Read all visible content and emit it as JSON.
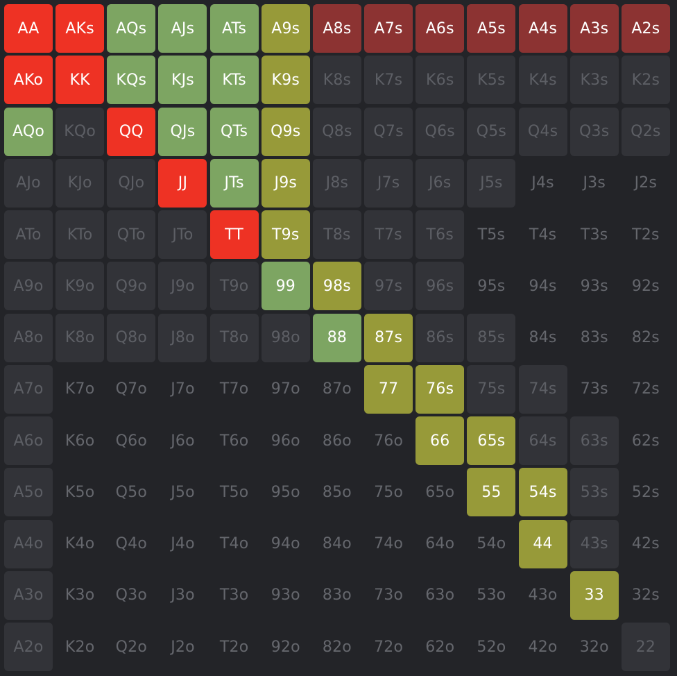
{
  "colors": {
    "raise": "#ee3224",
    "deep_red": "#8c3332",
    "green": "#7da562",
    "olive": "#979a39",
    "muted": "#323338",
    "none": "transparent"
  },
  "rows": [
    [
      {
        "label": "AA",
        "action": "raise"
      },
      {
        "label": "AKs",
        "action": "raise"
      },
      {
        "label": "AQs",
        "action": "green"
      },
      {
        "label": "AJs",
        "action": "green"
      },
      {
        "label": "ATs",
        "action": "green"
      },
      {
        "label": "A9s",
        "action": "olive"
      },
      {
        "label": "A8s",
        "action": "deep_red"
      },
      {
        "label": "A7s",
        "action": "deep_red"
      },
      {
        "label": "A6s",
        "action": "deep_red"
      },
      {
        "label": "A5s",
        "action": "deep_red"
      },
      {
        "label": "A4s",
        "action": "deep_red"
      },
      {
        "label": "A3s",
        "action": "deep_red"
      },
      {
        "label": "A2s",
        "action": "deep_red"
      }
    ],
    [
      {
        "label": "AKo",
        "action": "raise"
      },
      {
        "label": "KK",
        "action": "raise"
      },
      {
        "label": "KQs",
        "action": "green"
      },
      {
        "label": "KJs",
        "action": "green"
      },
      {
        "label": "KTs",
        "action": "green"
      },
      {
        "label": "K9s",
        "action": "olive"
      },
      {
        "label": "K8s",
        "action": "muted"
      },
      {
        "label": "K7s",
        "action": "muted"
      },
      {
        "label": "K6s",
        "action": "muted"
      },
      {
        "label": "K5s",
        "action": "muted"
      },
      {
        "label": "K4s",
        "action": "muted"
      },
      {
        "label": "K3s",
        "action": "muted"
      },
      {
        "label": "K2s",
        "action": "muted"
      }
    ],
    [
      {
        "label": "AQo",
        "action": "green"
      },
      {
        "label": "KQo",
        "action": "muted"
      },
      {
        "label": "QQ",
        "action": "raise"
      },
      {
        "label": "QJs",
        "action": "green"
      },
      {
        "label": "QTs",
        "action": "green"
      },
      {
        "label": "Q9s",
        "action": "olive"
      },
      {
        "label": "Q8s",
        "action": "muted"
      },
      {
        "label": "Q7s",
        "action": "muted"
      },
      {
        "label": "Q6s",
        "action": "muted"
      },
      {
        "label": "Q5s",
        "action": "muted"
      },
      {
        "label": "Q4s",
        "action": "muted"
      },
      {
        "label": "Q3s",
        "action": "muted"
      },
      {
        "label": "Q2s",
        "action": "muted"
      }
    ],
    [
      {
        "label": "AJo",
        "action": "muted"
      },
      {
        "label": "KJo",
        "action": "muted"
      },
      {
        "label": "QJo",
        "action": "muted"
      },
      {
        "label": "JJ",
        "action": "raise"
      },
      {
        "label": "JTs",
        "action": "green"
      },
      {
        "label": "J9s",
        "action": "olive"
      },
      {
        "label": "J8s",
        "action": "muted"
      },
      {
        "label": "J7s",
        "action": "muted"
      },
      {
        "label": "J6s",
        "action": "muted"
      },
      {
        "label": "J5s",
        "action": "muted"
      },
      {
        "label": "J4s",
        "action": "none"
      },
      {
        "label": "J3s",
        "action": "none"
      },
      {
        "label": "J2s",
        "action": "none"
      }
    ],
    [
      {
        "label": "ATo",
        "action": "muted"
      },
      {
        "label": "KTo",
        "action": "muted"
      },
      {
        "label": "QTo",
        "action": "muted"
      },
      {
        "label": "JTo",
        "action": "muted"
      },
      {
        "label": "TT",
        "action": "raise"
      },
      {
        "label": "T9s",
        "action": "olive"
      },
      {
        "label": "T8s",
        "action": "muted"
      },
      {
        "label": "T7s",
        "action": "muted"
      },
      {
        "label": "T6s",
        "action": "muted"
      },
      {
        "label": "T5s",
        "action": "none"
      },
      {
        "label": "T4s",
        "action": "none"
      },
      {
        "label": "T3s",
        "action": "none"
      },
      {
        "label": "T2s",
        "action": "none"
      }
    ],
    [
      {
        "label": "A9o",
        "action": "muted"
      },
      {
        "label": "K9o",
        "action": "muted"
      },
      {
        "label": "Q9o",
        "action": "muted"
      },
      {
        "label": "J9o",
        "action": "muted"
      },
      {
        "label": "T9o",
        "action": "muted"
      },
      {
        "label": "99",
        "action": "green"
      },
      {
        "label": "98s",
        "action": "olive"
      },
      {
        "label": "97s",
        "action": "muted"
      },
      {
        "label": "96s",
        "action": "muted"
      },
      {
        "label": "95s",
        "action": "none"
      },
      {
        "label": "94s",
        "action": "none"
      },
      {
        "label": "93s",
        "action": "none"
      },
      {
        "label": "92s",
        "action": "none"
      }
    ],
    [
      {
        "label": "A8o",
        "action": "muted"
      },
      {
        "label": "K8o",
        "action": "muted"
      },
      {
        "label": "Q8o",
        "action": "muted"
      },
      {
        "label": "J8o",
        "action": "muted"
      },
      {
        "label": "T8o",
        "action": "muted"
      },
      {
        "label": "98o",
        "action": "muted"
      },
      {
        "label": "88",
        "action": "green"
      },
      {
        "label": "87s",
        "action": "olive"
      },
      {
        "label": "86s",
        "action": "muted"
      },
      {
        "label": "85s",
        "action": "muted"
      },
      {
        "label": "84s",
        "action": "none"
      },
      {
        "label": "83s",
        "action": "none"
      },
      {
        "label": "82s",
        "action": "none"
      }
    ],
    [
      {
        "label": "A7o",
        "action": "muted"
      },
      {
        "label": "K7o",
        "action": "none"
      },
      {
        "label": "Q7o",
        "action": "none"
      },
      {
        "label": "J7o",
        "action": "none"
      },
      {
        "label": "T7o",
        "action": "none"
      },
      {
        "label": "97o",
        "action": "none"
      },
      {
        "label": "87o",
        "action": "none"
      },
      {
        "label": "77",
        "action": "olive"
      },
      {
        "label": "76s",
        "action": "olive"
      },
      {
        "label": "75s",
        "action": "muted"
      },
      {
        "label": "74s",
        "action": "muted"
      },
      {
        "label": "73s",
        "action": "none"
      },
      {
        "label": "72s",
        "action": "none"
      }
    ],
    [
      {
        "label": "A6o",
        "action": "muted"
      },
      {
        "label": "K6o",
        "action": "none"
      },
      {
        "label": "Q6o",
        "action": "none"
      },
      {
        "label": "J6o",
        "action": "none"
      },
      {
        "label": "T6o",
        "action": "none"
      },
      {
        "label": "96o",
        "action": "none"
      },
      {
        "label": "86o",
        "action": "none"
      },
      {
        "label": "76o",
        "action": "none"
      },
      {
        "label": "66",
        "action": "olive"
      },
      {
        "label": "65s",
        "action": "olive"
      },
      {
        "label": "64s",
        "action": "muted"
      },
      {
        "label": "63s",
        "action": "muted"
      },
      {
        "label": "62s",
        "action": "none"
      }
    ],
    [
      {
        "label": "A5o",
        "action": "muted"
      },
      {
        "label": "K5o",
        "action": "none"
      },
      {
        "label": "Q5o",
        "action": "none"
      },
      {
        "label": "J5o",
        "action": "none"
      },
      {
        "label": "T5o",
        "action": "none"
      },
      {
        "label": "95o",
        "action": "none"
      },
      {
        "label": "85o",
        "action": "none"
      },
      {
        "label": "75o",
        "action": "none"
      },
      {
        "label": "65o",
        "action": "none"
      },
      {
        "label": "55",
        "action": "olive"
      },
      {
        "label": "54s",
        "action": "olive"
      },
      {
        "label": "53s",
        "action": "muted"
      },
      {
        "label": "52s",
        "action": "none"
      }
    ],
    [
      {
        "label": "A4o",
        "action": "muted"
      },
      {
        "label": "K4o",
        "action": "none"
      },
      {
        "label": "Q4o",
        "action": "none"
      },
      {
        "label": "J4o",
        "action": "none"
      },
      {
        "label": "T4o",
        "action": "none"
      },
      {
        "label": "94o",
        "action": "none"
      },
      {
        "label": "84o",
        "action": "none"
      },
      {
        "label": "74o",
        "action": "none"
      },
      {
        "label": "64o",
        "action": "none"
      },
      {
        "label": "54o",
        "action": "none"
      },
      {
        "label": "44",
        "action": "olive"
      },
      {
        "label": "43s",
        "action": "muted"
      },
      {
        "label": "42s",
        "action": "none"
      }
    ],
    [
      {
        "label": "A3o",
        "action": "muted"
      },
      {
        "label": "K3o",
        "action": "none"
      },
      {
        "label": "Q3o",
        "action": "none"
      },
      {
        "label": "J3o",
        "action": "none"
      },
      {
        "label": "T3o",
        "action": "none"
      },
      {
        "label": "93o",
        "action": "none"
      },
      {
        "label": "83o",
        "action": "none"
      },
      {
        "label": "73o",
        "action": "none"
      },
      {
        "label": "63o",
        "action": "none"
      },
      {
        "label": "53o",
        "action": "none"
      },
      {
        "label": "43o",
        "action": "none"
      },
      {
        "label": "33",
        "action": "olive"
      },
      {
        "label": "32s",
        "action": "none"
      }
    ],
    [
      {
        "label": "A2o",
        "action": "muted"
      },
      {
        "label": "K2o",
        "action": "none"
      },
      {
        "label": "Q2o",
        "action": "none"
      },
      {
        "label": "J2o",
        "action": "none"
      },
      {
        "label": "T2o",
        "action": "none"
      },
      {
        "label": "92o",
        "action": "none"
      },
      {
        "label": "82o",
        "action": "none"
      },
      {
        "label": "72o",
        "action": "none"
      },
      {
        "label": "62o",
        "action": "none"
      },
      {
        "label": "52o",
        "action": "none"
      },
      {
        "label": "42o",
        "action": "none"
      },
      {
        "label": "32o",
        "action": "none"
      },
      {
        "label": "22",
        "action": "muted"
      }
    ]
  ]
}
